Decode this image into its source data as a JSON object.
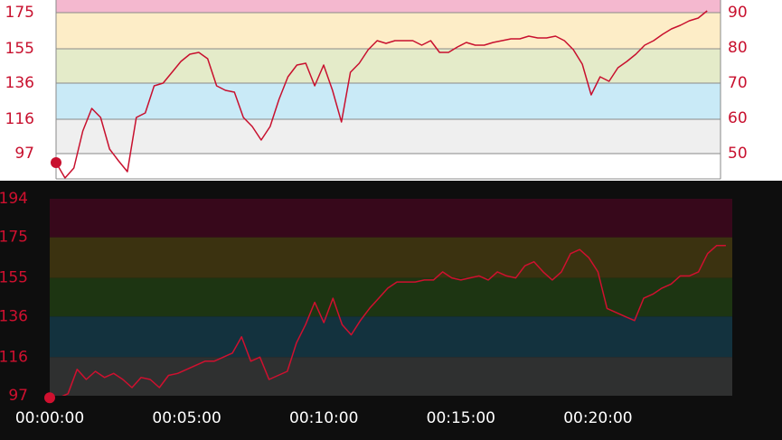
{
  "chart_data": [
    {
      "type": "line",
      "ylim": [
        83,
        182
      ],
      "yticks": [
        97,
        116,
        136,
        155,
        175
      ],
      "y2lim": [
        42.8,
        93.6
      ],
      "y2ticks": [
        50,
        60,
        70,
        80,
        90
      ],
      "xlim": [
        0,
        1490
      ],
      "bands": [
        {
          "from": 175,
          "to": 194,
          "color": "#f4b8cf"
        },
        {
          "from": 155,
          "to": 175,
          "color": "#fdedc7"
        },
        {
          "from": 136,
          "to": 155,
          "color": "#e4ebc9"
        },
        {
          "from": 116,
          "to": 136,
          "color": "#c9eaf7"
        },
        {
          "from": 97,
          "to": 116,
          "color": "#efefef"
        }
      ],
      "color": "#c8102e",
      "x": [
        0,
        20,
        40,
        60,
        80,
        100,
        120,
        140,
        160,
        180,
        200,
        220,
        240,
        260,
        280,
        300,
        320,
        340,
        360,
        380,
        400,
        420,
        440,
        460,
        480,
        500,
        520,
        540,
        560,
        580,
        600,
        620,
        640,
        660,
        680,
        700,
        720,
        740,
        760,
        780,
        800,
        820,
        840,
        860,
        880,
        900,
        920,
        940,
        960,
        980,
        1000,
        1020,
        1040,
        1060,
        1080,
        1100,
        1120,
        1140,
        1160,
        1180,
        1200,
        1220,
        1240,
        1260,
        1280,
        1300,
        1320,
        1340,
        1360,
        1380,
        1400,
        1420,
        1440,
        1460
      ],
      "values": [
        92,
        83.5,
        89,
        109.5,
        122,
        117,
        99.5,
        93,
        87,
        117,
        119.5,
        134.5,
        136,
        142,
        148,
        152,
        153,
        149.5,
        134.5,
        132,
        131,
        117,
        112,
        104.5,
        112,
        127,
        139.5,
        146,
        147,
        134.5,
        146,
        132,
        114.5,
        142,
        147,
        154.5,
        159.5,
        158,
        159.5,
        159.5,
        159.5,
        157,
        159.5,
        153,
        153,
        156,
        158.5,
        157,
        157,
        158.5,
        159.5,
        160.5,
        160.5,
        162,
        161,
        161,
        162,
        159.5,
        154.5,
        146.5,
        129.5,
        139.5,
        137,
        144.5,
        148,
        152,
        157,
        159.5,
        163,
        166,
        168,
        170.5,
        172,
        176
      ]
    },
    {
      "type": "line",
      "ylim": [
        97,
        194
      ],
      "yticks": [
        97,
        116,
        136,
        155,
        175,
        194
      ],
      "xlim": [
        0,
        1494
      ],
      "xticks": [
        {
          "value": 0,
          "label": "00:00:00"
        },
        {
          "value": 300,
          "label": "00:05:00"
        },
        {
          "value": 600,
          "label": "00:10:00"
        },
        {
          "value": 900,
          "label": "00:15:00"
        },
        {
          "value": 1200,
          "label": "00:20:00"
        }
      ],
      "bands": [
        {
          "from": 175,
          "to": 194,
          "color": "#37081b"
        },
        {
          "from": 155,
          "to": 175,
          "color": "#3b3210"
        },
        {
          "from": 136,
          "to": 155,
          "color": "#1d3512"
        },
        {
          "from": 116,
          "to": 136,
          "color": "#13323e"
        },
        {
          "from": 97,
          "to": 116,
          "color": "#2f3030"
        }
      ],
      "color": "#d0102f",
      "x": [
        0,
        20,
        40,
        60,
        80,
        100,
        120,
        140,
        160,
        180,
        200,
        220,
        240,
        260,
        280,
        300,
        320,
        340,
        360,
        380,
        400,
        420,
        440,
        460,
        480,
        500,
        520,
        540,
        560,
        580,
        600,
        620,
        640,
        660,
        680,
        700,
        720,
        740,
        760,
        780,
        800,
        820,
        840,
        860,
        880,
        900,
        920,
        940,
        960,
        980,
        1000,
        1020,
        1040,
        1060,
        1080,
        1100,
        1120,
        1140,
        1160,
        1180,
        1200,
        1220,
        1240,
        1260,
        1280,
        1300,
        1320,
        1340,
        1360,
        1380,
        1400,
        1420,
        1440,
        1460,
        1480
      ],
      "values": [
        96,
        96,
        98,
        110,
        105,
        109,
        106,
        108,
        105,
        101,
        106,
        105,
        101,
        107,
        108,
        110,
        112,
        114,
        114,
        116,
        118,
        126,
        114,
        116,
        105,
        107,
        109,
        123,
        132,
        143,
        133,
        145,
        132,
        127,
        134,
        140,
        145,
        150,
        153,
        153,
        153,
        154,
        154,
        158,
        155,
        154,
        155,
        156,
        154,
        158,
        156,
        155,
        161,
        163,
        158,
        154,
        158,
        167,
        169,
        165,
        158,
        140,
        138,
        136,
        134,
        145,
        147,
        150,
        152,
        156,
        156,
        158,
        167,
        171,
        171
      ]
    }
  ]
}
